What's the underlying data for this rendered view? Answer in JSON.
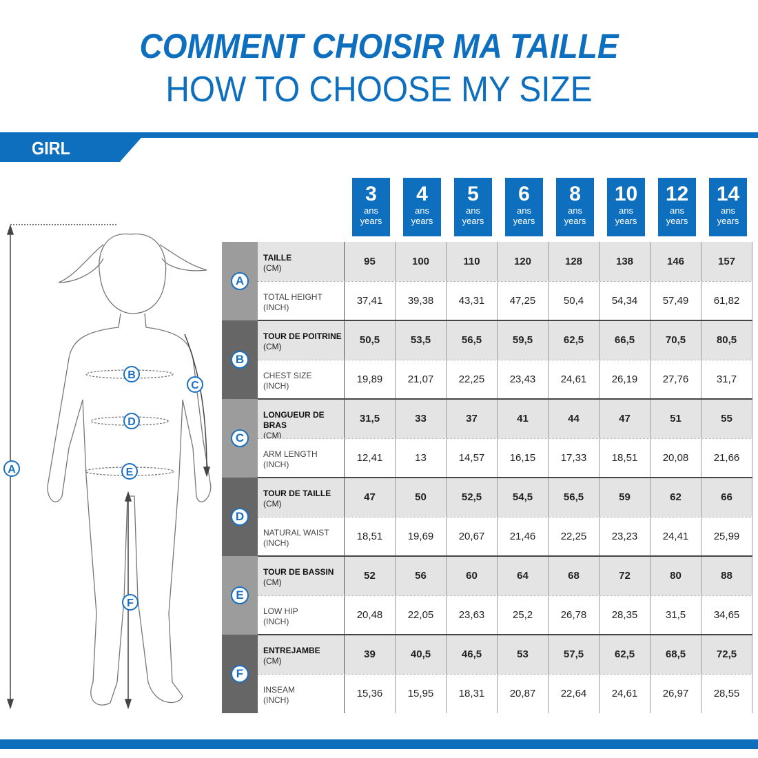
{
  "title_fr": "COMMENT CHOISIR MA TAILLE",
  "title_en": "HOW TO CHOOSE MY SIZE",
  "category": "GIRL",
  "brand_color": "#0f6fbf",
  "ages": [
    {
      "n": "3",
      "fr": "ans",
      "en": "years"
    },
    {
      "n": "4",
      "fr": "ans",
      "en": "years"
    },
    {
      "n": "5",
      "fr": "ans",
      "en": "years"
    },
    {
      "n": "6",
      "fr": "ans",
      "en": "years"
    },
    {
      "n": "8",
      "fr": "ans",
      "en": "years"
    },
    {
      "n": "10",
      "fr": "ans",
      "en": "years"
    },
    {
      "n": "12",
      "fr": "ans",
      "en": "years"
    },
    {
      "n": "14",
      "fr": "ans",
      "en": "years"
    }
  ],
  "groups": [
    {
      "letter": "A",
      "cm_label": "TAILLE",
      "cm_unit": "(CM)",
      "cm": [
        "95",
        "100",
        "110",
        "120",
        "128",
        "138",
        "146",
        "157"
      ],
      "in_label": "TOTAL HEIGHT",
      "in_unit": "(INCH)",
      "inch": [
        "37,41",
        "39,38",
        "43,31",
        "47,25",
        "50,4",
        "54,34",
        "57,49",
        "61,82"
      ]
    },
    {
      "letter": "B",
      "cm_label": "TOUR DE POITRINE",
      "cm_unit": "(CM)",
      "cm": [
        "50,5",
        "53,5",
        "56,5",
        "59,5",
        "62,5",
        "66,5",
        "70,5",
        "80,5"
      ],
      "in_label": "CHEST SIZE",
      "in_unit": "(INCH)",
      "inch": [
        "19,89",
        "21,07",
        "22,25",
        "23,43",
        "24,61",
        "26,19",
        "27,76",
        "31,7"
      ]
    },
    {
      "letter": "C",
      "cm_label": "LONGUEUR DE BRAS",
      "cm_unit": "(CM)",
      "cm": [
        "31,5",
        "33",
        "37",
        "41",
        "44",
        "47",
        "51",
        "55"
      ],
      "in_label": "ARM LENGTH",
      "in_unit": "(INCH)",
      "inch": [
        "12,41",
        "13",
        "14,57",
        "16,15",
        "17,33",
        "18,51",
        "20,08",
        "21,66"
      ]
    },
    {
      "letter": "D",
      "cm_label": "TOUR DE TAILLE",
      "cm_unit": "(CM)",
      "cm": [
        "47",
        "50",
        "52,5",
        "54,5",
        "56,5",
        "59",
        "62",
        "66"
      ],
      "in_label": "NATURAL WAIST",
      "in_unit": "(INCH)",
      "inch": [
        "18,51",
        "19,69",
        "20,67",
        "21,46",
        "22,25",
        "23,23",
        "24,41",
        "25,99"
      ]
    },
    {
      "letter": "E",
      "cm_label": "TOUR DE BASSIN",
      "cm_unit": "(CM)",
      "cm": [
        "52",
        "56",
        "60",
        "64",
        "68",
        "72",
        "80",
        "88"
      ],
      "in_label": "LOW HIP",
      "in_unit": "(INCH)",
      "inch": [
        "20,48",
        "22,05",
        "23,63",
        "25,2",
        "26,78",
        "28,35",
        "31,5",
        "34,65"
      ]
    },
    {
      "letter": "F",
      "cm_label": "ENTREJAMBE",
      "cm_unit": "(CM)",
      "cm": [
        "39",
        "40,5",
        "46,5",
        "53",
        "57,5",
        "62,5",
        "68,5",
        "72,5"
      ],
      "in_label": "INSEAM",
      "in_unit": "(INCH)",
      "inch": [
        "15,36",
        "15,95",
        "18,31",
        "20,87",
        "22,64",
        "24,61",
        "26,97",
        "28,55"
      ]
    }
  ],
  "figure_labels": [
    "A",
    "B",
    "C",
    "D",
    "E",
    "F"
  ]
}
